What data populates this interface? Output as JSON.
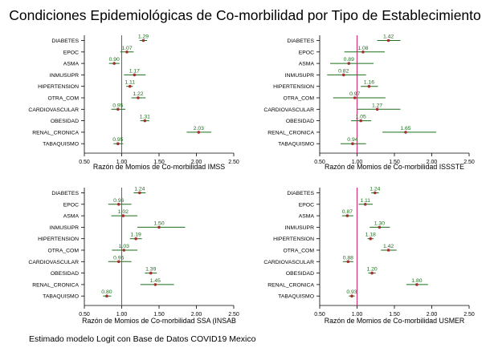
{
  "title": "Condiciones Epidemiológicas de Co-morbilidad por Tipo de Establecimiento",
  "footnote": "Estimado modelo Logit con Base de Datos COVID19 Mexico",
  "colors": {
    "reference_line": "#d6286f",
    "ci": "#1b6e1b",
    "point": "#a3322f",
    "label": "#1b6e1b",
    "axis": "#000000"
  },
  "chart_data": [
    {
      "type": "forest",
      "xlabel": "Razón de Momios de Co-morbilidad IMSS",
      "xlim": [
        0.5,
        2.5
      ],
      "xticks": [
        "0.50",
        "1.00",
        "1.50",
        "2.00",
        "2.50"
      ],
      "reference": 1.0,
      "rows": [
        {
          "label": "DIABETES",
          "or": 1.29,
          "or_label": "1.29",
          "lo": 1.24,
          "hi": 1.34
        },
        {
          "label": "EPOC",
          "or": 1.07,
          "or_label": "1.07",
          "lo": 0.98,
          "hi": 1.16
        },
        {
          "label": "ASMA",
          "or": 0.9,
          "or_label": "0.90",
          "lo": 0.83,
          "hi": 0.97
        },
        {
          "label": "INMUSUPR",
          "or": 1.17,
          "or_label": "1.17",
          "lo": 1.03,
          "hi": 1.32
        },
        {
          "label": "HIPERTENSION",
          "or": 1.11,
          "or_label": "1.11",
          "lo": 1.06,
          "hi": 1.15
        },
        {
          "label": "OTRA_COM",
          "or": 1.22,
          "or_label": "1.22",
          "lo": 1.13,
          "hi": 1.32
        },
        {
          "label": "CARDIOVASCULAR",
          "or": 0.95,
          "or_label": "0.95",
          "lo": 0.86,
          "hi": 1.05
        },
        {
          "label": "OBESIDAD",
          "or": 1.31,
          "or_label": "1.31",
          "lo": 1.25,
          "hi": 1.37
        },
        {
          "label": "RENAL_CRONICA",
          "or": 2.03,
          "or_label": "2.03",
          "lo": 1.87,
          "hi": 2.2
        },
        {
          "label": "TABAQUISMO",
          "or": 0.95,
          "or_label": "0.95",
          "lo": 0.89,
          "hi": 1.02
        }
      ]
    },
    {
      "type": "forest",
      "xlabel": "Razón de Momios de Co-morbilidad ISSSTE",
      "xlim": [
        0.5,
        2.5
      ],
      "xticks": [
        "0.50",
        "1.00",
        "1.50",
        "2.00",
        "2.50"
      ],
      "reference": 1.0,
      "rows": [
        {
          "label": "DIABETES",
          "or": 1.42,
          "or_label": "1.42",
          "lo": 1.27,
          "hi": 1.58
        },
        {
          "label": "EPOC",
          "or": 1.08,
          "or_label": "1.08",
          "lo": 0.83,
          "hi": 1.37
        },
        {
          "label": "ASMA",
          "or": 0.89,
          "or_label": "0.89",
          "lo": 0.64,
          "hi": 1.22
        },
        {
          "label": "INMUSUPR",
          "or": 0.82,
          "or_label": "0.82",
          "lo": 0.6,
          "hi": 1.12
        },
        {
          "label": "HIPERTENSION",
          "or": 1.16,
          "or_label": "1.16",
          "lo": 1.05,
          "hi": 1.28
        },
        {
          "label": "OTRA_COM",
          "or": 0.97,
          "or_label": "0.97",
          "lo": 0.68,
          "hi": 1.38
        },
        {
          "label": "CARDIOVASCULAR",
          "or": 1.27,
          "or_label": "1.27",
          "lo": 1.0,
          "hi": 1.58
        },
        {
          "label": "OBESIDAD",
          "or": 1.05,
          "or_label": "1.05",
          "lo": 0.92,
          "hi": 1.19
        },
        {
          "label": "RENAL_CRONICA",
          "or": 1.65,
          "or_label": "1.65",
          "lo": 1.34,
          "hi": 2.06
        },
        {
          "label": "TABAQUISMO",
          "or": 0.94,
          "or_label": "0.94",
          "lo": 0.78,
          "hi": 1.12
        }
      ]
    },
    {
      "type": "forest",
      "xlabel": "Razón de Momios de Co-morbilidad SSA (INSAB",
      "xlim": [
        0.5,
        2.5
      ],
      "xticks": [
        "0.50",
        "1.00",
        "1.50",
        "2.00",
        "2.50"
      ],
      "reference": 1.0,
      "rows": [
        {
          "label": "DIABETES",
          "or": 1.24,
          "or_label": "1.24",
          "lo": 1.16,
          "hi": 1.32
        },
        {
          "label": "EPOC",
          "or": 0.96,
          "or_label": "0.96",
          "lo": 0.82,
          "hi": 1.13
        },
        {
          "label": "ASMA",
          "or": 1.02,
          "or_label": "1.02",
          "lo": 0.86,
          "hi": 1.21
        },
        {
          "label": "INMUSUPR",
          "or": 1.5,
          "or_label": "1.50",
          "lo": 1.21,
          "hi": 1.85
        },
        {
          "label": "HIPERTENSION",
          "or": 1.19,
          "or_label": "1.19",
          "lo": 1.11,
          "hi": 1.27
        },
        {
          "label": "OTRA_COM",
          "or": 1.03,
          "or_label": "1.03",
          "lo": 0.87,
          "hi": 1.21
        },
        {
          "label": "CARDIOVASCULAR",
          "or": 0.96,
          "or_label": "0.96",
          "lo": 0.82,
          "hi": 1.13
        },
        {
          "label": "OBESIDAD",
          "or": 1.39,
          "or_label": "1.39",
          "lo": 1.31,
          "hi": 1.47
        },
        {
          "label": "RENAL_CRONICA",
          "or": 1.45,
          "or_label": "1.45",
          "lo": 1.25,
          "hi": 1.7
        },
        {
          "label": "TABAQUISMO",
          "or": 0.8,
          "or_label": "0.80",
          "lo": 0.75,
          "hi": 0.86
        }
      ]
    },
    {
      "type": "forest",
      "xlabel": "Razón de Momios de Co-morbilidad USMER",
      "xlim": [
        0.5,
        2.5
      ],
      "xticks": [
        "0.50",
        "1.00",
        "1.50",
        "2.00",
        "2.50"
      ],
      "reference": 1.0,
      "rows": [
        {
          "label": "DIABETES",
          "or": 1.24,
          "or_label": "1.24",
          "lo": 1.19,
          "hi": 1.29
        },
        {
          "label": "EPOC",
          "or": 1.11,
          "or_label": "1.11",
          "lo": 1.02,
          "hi": 1.21
        },
        {
          "label": "ASMA",
          "or": 0.87,
          "or_label": "0.87",
          "lo": 0.8,
          "hi": 0.95
        },
        {
          "label": "INMUSUPR",
          "or": 1.3,
          "or_label": "1.30",
          "lo": 1.17,
          "hi": 1.44
        },
        {
          "label": "HIPERTENSION",
          "or": 1.18,
          "or_label": "1.18",
          "lo": 1.14,
          "hi": 1.22
        },
        {
          "label": "OTRA_COM",
          "or": 1.42,
          "or_label": "1.42",
          "lo": 1.32,
          "hi": 1.53
        },
        {
          "label": "CARDIOVASCULAR",
          "or": 0.88,
          "or_label": "0.88",
          "lo": 0.81,
          "hi": 0.95
        },
        {
          "label": "OBESIDAD",
          "or": 1.2,
          "or_label": "1.20",
          "lo": 1.15,
          "hi": 1.25
        },
        {
          "label": "RENAL_CRONICA",
          "or": 1.8,
          "or_label": "1.80",
          "lo": 1.66,
          "hi": 1.95
        },
        {
          "label": "TABAQUISMO",
          "or": 0.93,
          "or_label": "0.93",
          "lo": 0.89,
          "hi": 0.97
        }
      ]
    }
  ]
}
